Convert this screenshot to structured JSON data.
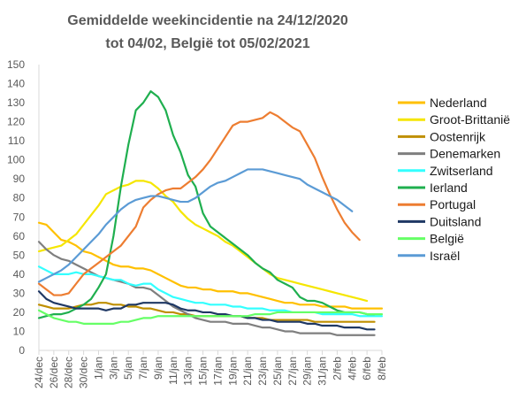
{
  "chart_data": {
    "type": "line",
    "title_lines": [
      "Gemiddelde weekincidentie  na 24/12/2020",
      "tot 04/02, België tot 05/02/2021"
    ],
    "xlabel": "",
    "ylabel": "",
    "ylim": [
      0,
      150
    ],
    "yticks": [
      0,
      10,
      20,
      30,
      40,
      50,
      60,
      70,
      80,
      90,
      100,
      110,
      120,
      130,
      140,
      150
    ],
    "grid": false,
    "legend_position": "right",
    "x_start_date": "2020-12-24",
    "x_count": 47,
    "x_tick_labels": [
      "24/dec",
      "26/dec",
      "28/dec",
      "30/dec",
      "1/jan",
      "3/jan",
      "5/jan",
      "7/jan",
      "9/jan",
      "11/jan",
      "13/jan",
      "15/jan",
      "17/jan",
      "19/jan",
      "21/jan",
      "23/jan",
      "25/jan",
      "27/jan",
      "29/jan",
      "31/jan",
      "2/feb",
      "4/feb",
      "6/feb",
      "8/feb"
    ],
    "series": [
      {
        "name": "Nederland",
        "color": "#FFC000",
        "values": [
          67,
          66,
          62,
          58,
          57,
          55,
          52,
          51,
          49,
          47,
          45,
          44,
          44,
          43,
          43,
          42,
          40,
          38,
          36,
          34,
          33,
          33,
          32,
          32,
          31,
          31,
          31,
          30,
          30,
          29,
          28,
          27,
          26,
          25,
          25,
          24,
          24,
          24,
          23,
          23,
          23,
          23,
          22,
          22,
          22,
          22,
          22
        ]
      },
      {
        "name": "Groot-Brittanië",
        "color": "#F5E600",
        "values": [
          52,
          53,
          54,
          55,
          58,
          61,
          66,
          71,
          76,
          82,
          84,
          86,
          87,
          89,
          89,
          88,
          85,
          81,
          78,
          73,
          69,
          66,
          64,
          62,
          60,
          57,
          55,
          52,
          49,
          46,
          43,
          40,
          38,
          37,
          36,
          35,
          34,
          33,
          32,
          31,
          30,
          29,
          28,
          27,
          26,
          null,
          null
        ]
      },
      {
        "name": "Oostenrijk",
        "color": "#BF8F00",
        "values": [
          24,
          23,
          22,
          22,
          22,
          23,
          24,
          24,
          25,
          25,
          24,
          24,
          23,
          23,
          22,
          22,
          21,
          20,
          20,
          19,
          19,
          18,
          18,
          18,
          18,
          18,
          18,
          18,
          17,
          17,
          17,
          16,
          16,
          16,
          16,
          16,
          16,
          15,
          15,
          15,
          15,
          15,
          15,
          15,
          15,
          15,
          null
        ]
      },
      {
        "name": "Denemarken",
        "color": "#7F7F7F",
        "values": [
          57,
          53,
          50,
          48,
          47,
          45,
          43,
          41,
          39,
          38,
          37,
          36,
          35,
          33,
          33,
          32,
          29,
          26,
          23,
          21,
          19,
          17,
          16,
          15,
          15,
          15,
          14,
          14,
          14,
          13,
          12,
          12,
          11,
          10,
          10,
          9,
          9,
          9,
          9,
          9,
          8,
          8,
          8,
          8,
          8,
          8,
          null
        ]
      },
      {
        "name": "Zwitserland",
        "color": "#33FFFF",
        "values": [
          44,
          42,
          40,
          40,
          40,
          41,
          40,
          40,
          39,
          38,
          37,
          37,
          35,
          34,
          35,
          35,
          32,
          30,
          28,
          27,
          26,
          25,
          25,
          24,
          24,
          24,
          23,
          23,
          22,
          22,
          22,
          21,
          21,
          21,
          20,
          20,
          20,
          20,
          19,
          19,
          19,
          19,
          19,
          18,
          18,
          18,
          18
        ]
      },
      {
        "name": "Ierland",
        "color": "#1FAF4F",
        "values": [
          17,
          18,
          19,
          19,
          20,
          22,
          24,
          27,
          33,
          40,
          60,
          86,
          108,
          126,
          130,
          136,
          133,
          126,
          113,
          104,
          92,
          86,
          72,
          65,
          62,
          59,
          56,
          53,
          50,
          46,
          43,
          41,
          37,
          35,
          33,
          28,
          26,
          26,
          25,
          23,
          21,
          20,
          20,
          20,
          19,
          19,
          null
        ]
      },
      {
        "name": "Portugal",
        "color": "#ED7D31",
        "values": [
          35,
          32,
          29,
          29,
          30,
          35,
          40,
          43,
          46,
          49,
          52,
          55,
          60,
          65,
          75,
          79,
          82,
          84,
          85,
          85,
          88,
          91,
          95,
          100,
          106,
          112,
          118,
          120,
          120,
          121,
          122,
          125,
          123,
          120,
          117,
          115,
          108,
          101,
          91,
          82,
          74,
          67,
          62,
          58,
          null,
          null,
          null
        ]
      },
      {
        "name": "Duitsland",
        "color": "#1F3864",
        "values": [
          31,
          27,
          25,
          24,
          23,
          22,
          22,
          22,
          22,
          21,
          22,
          22,
          24,
          24,
          25,
          25,
          25,
          25,
          24,
          22,
          21,
          21,
          20,
          20,
          19,
          19,
          18,
          18,
          17,
          17,
          16,
          16,
          15,
          15,
          15,
          15,
          14,
          14,
          13,
          13,
          13,
          12,
          12,
          12,
          11,
          11,
          null
        ]
      },
      {
        "name": "België",
        "color": "#66FF66",
        "values": [
          21,
          19,
          17,
          16,
          15,
          15,
          14,
          14,
          14,
          14,
          14,
          15,
          15,
          16,
          17,
          17,
          18,
          18,
          18,
          18,
          18,
          18,
          18,
          18,
          18,
          18,
          18,
          18,
          18,
          19,
          19,
          19,
          20,
          20,
          20,
          20,
          20,
          20,
          20,
          20,
          20,
          20,
          20,
          20,
          19,
          19,
          19
        ]
      },
      {
        "name": "Israël",
        "color": "#5B9BD5",
        "values": [
          36,
          38,
          40,
          42,
          45,
          49,
          53,
          57,
          61,
          66,
          70,
          74,
          77,
          79,
          80,
          81,
          81,
          80,
          79,
          78,
          78,
          80,
          83,
          86,
          88,
          89,
          91,
          93,
          95,
          95,
          95,
          94,
          93,
          92,
          91,
          90,
          87,
          85,
          83,
          81,
          79,
          76,
          73,
          null,
          null,
          null,
          null
        ]
      }
    ]
  }
}
